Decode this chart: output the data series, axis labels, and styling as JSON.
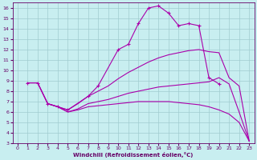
{
  "xlabel": "Windchill (Refroidissement éolien,°C)",
  "xlim": [
    -0.5,
    23.5
  ],
  "ylim": [
    3,
    16.5
  ],
  "xticks": [
    0,
    1,
    2,
    3,
    4,
    5,
    6,
    7,
    8,
    9,
    10,
    11,
    12,
    13,
    14,
    15,
    16,
    17,
    18,
    19,
    20,
    21,
    22,
    23
  ],
  "yticks": [
    3,
    4,
    5,
    6,
    7,
    8,
    9,
    10,
    11,
    12,
    13,
    14,
    15,
    16
  ],
  "bg_color": "#c8eef0",
  "line_color": "#aa00aa",
  "grid_color": "#a0ccd0",
  "lines": [
    {
      "x": [
        1,
        2,
        3,
        4,
        5,
        7,
        8,
        10,
        11,
        12,
        13,
        14,
        15,
        16,
        17,
        18,
        19,
        20
      ],
      "y": [
        8.8,
        8.8,
        6.8,
        6.5,
        6.2,
        7.5,
        8.5,
        12.0,
        12.5,
        14.5,
        16.0,
        16.2,
        15.5,
        14.3,
        14.5,
        14.3,
        9.3,
        8.7
      ],
      "has_markers": true
    },
    {
      "x": [
        1,
        2,
        3,
        4,
        5,
        6,
        7,
        8,
        9,
        10,
        11,
        12,
        13,
        14,
        15,
        16,
        17,
        18,
        19,
        20,
        21,
        22,
        23
      ],
      "y": [
        8.8,
        8.8,
        6.8,
        6.5,
        6.2,
        6.8,
        7.5,
        8.0,
        8.5,
        9.2,
        9.8,
        10.3,
        10.8,
        11.2,
        11.5,
        11.7,
        11.9,
        12.0,
        11.8,
        11.7,
        9.3,
        8.5,
        3.2
      ],
      "has_markers": false
    },
    {
      "x": [
        1,
        2,
        3,
        4,
        5,
        6,
        7,
        8,
        9,
        10,
        11,
        12,
        13,
        14,
        15,
        16,
        17,
        18,
        19,
        20,
        21,
        22,
        23
      ],
      "y": [
        8.8,
        8.8,
        6.8,
        6.5,
        6.0,
        6.3,
        6.8,
        7.0,
        7.2,
        7.5,
        7.8,
        8.0,
        8.2,
        8.4,
        8.5,
        8.6,
        8.7,
        8.8,
        8.9,
        9.3,
        8.7,
        6.0,
        3.2
      ],
      "has_markers": false
    },
    {
      "x": [
        3,
        4,
        5,
        6,
        7,
        8,
        9,
        10,
        11,
        12,
        13,
        14,
        15,
        16,
        17,
        18,
        19,
        20,
        21,
        22,
        23
      ],
      "y": [
        6.8,
        6.5,
        6.0,
        6.2,
        6.5,
        6.6,
        6.7,
        6.8,
        6.9,
        7.0,
        7.0,
        7.0,
        7.0,
        6.9,
        6.8,
        6.7,
        6.5,
        6.2,
        5.8,
        5.0,
        3.2
      ],
      "has_markers": false
    }
  ]
}
